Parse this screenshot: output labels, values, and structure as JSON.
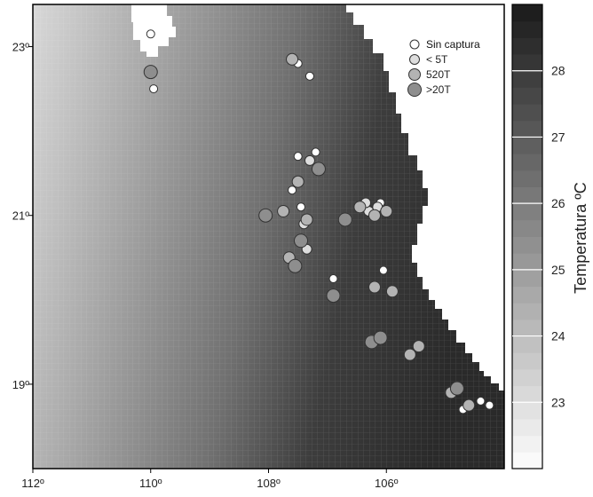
{
  "map": {
    "lon_ticks": [
      "112º",
      "110º",
      "108º",
      "106º"
    ],
    "lat_ticks": [
      "23º",
      "21º",
      "19º"
    ],
    "lon_values": [
      112,
      110,
      108,
      106
    ],
    "lat_values": [
      23,
      21,
      19
    ],
    "lon_range": [
      112,
      104
    ],
    "lat_range": [
      18,
      23.5
    ]
  },
  "legend": {
    "items": [
      {
        "label": "Sin captura",
        "class": "sin",
        "color": "#ffffff"
      },
      {
        "label": "< 5T",
        "class": "lt5",
        "color": "#dddddd"
      },
      {
        "label": "520T",
        "class": "t520",
        "color": "#b3b3b3"
      },
      {
        "label": ">20T",
        "class": "gt20",
        "color": "#8e8e8e"
      }
    ]
  },
  "colorbar": {
    "title": "Temperatura ºC",
    "ticks": [
      "28",
      "27",
      "26",
      "25",
      "24",
      "23"
    ],
    "tick_values": [
      28,
      27,
      26,
      25,
      24,
      23
    ],
    "range": [
      22,
      29
    ]
  },
  "chart_data": {
    "type": "scatter",
    "series": [
      {
        "name": "Sin captura",
        "points": [
          [
            110.0,
            23.15
          ],
          [
            107.5,
            22.8
          ],
          [
            109.95,
            22.5
          ],
          [
            107.3,
            22.65
          ],
          [
            107.5,
            21.7
          ],
          [
            107.2,
            21.75
          ],
          [
            107.6,
            21.3
          ],
          [
            107.45,
            21.1
          ],
          [
            106.1,
            21.15
          ],
          [
            106.05,
            20.35
          ],
          [
            106.9,
            20.25
          ],
          [
            104.25,
            18.75
          ],
          [
            104.7,
            18.7
          ],
          [
            104.4,
            18.8
          ]
        ]
      },
      {
        "name": "< 5T",
        "points": [
          [
            107.3,
            21.65
          ],
          [
            106.3,
            21.05
          ],
          [
            106.15,
            21.1
          ],
          [
            107.4,
            20.9
          ],
          [
            106.35,
            21.15
          ],
          [
            107.35,
            20.6
          ]
        ]
      },
      {
        "name": "520T",
        "points": [
          [
            107.6,
            22.85
          ],
          [
            107.5,
            21.4
          ],
          [
            106.2,
            21.0
          ],
          [
            106.0,
            21.05
          ],
          [
            107.35,
            20.95
          ],
          [
            107.75,
            21.05
          ],
          [
            106.2,
            20.15
          ],
          [
            105.9,
            20.1
          ],
          [
            104.9,
            18.9
          ],
          [
            104.6,
            18.75
          ],
          [
            105.6,
            19.35
          ],
          [
            105.45,
            19.45
          ],
          [
            107.65,
            20.5
          ],
          [
            106.45,
            21.1
          ]
        ]
      },
      {
        "name": ">20T",
        "points": [
          [
            110.0,
            22.7
          ],
          [
            107.15,
            21.55
          ],
          [
            108.05,
            21.0
          ],
          [
            106.7,
            20.95
          ],
          [
            107.45,
            20.7
          ],
          [
            106.9,
            20.05
          ],
          [
            106.25,
            19.5
          ],
          [
            106.1,
            19.55
          ],
          [
            104.8,
            18.95
          ],
          [
            107.55,
            20.4
          ]
        ]
      }
    ]
  }
}
